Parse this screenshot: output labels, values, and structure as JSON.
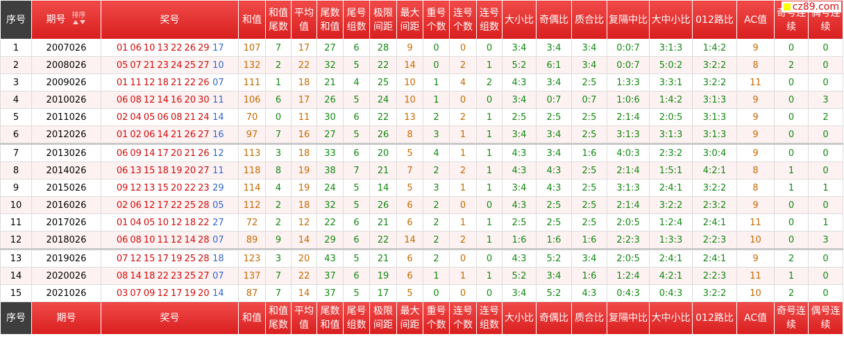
{
  "watermark": "cz89.com",
  "sort_label": "排序",
  "header": [
    "序号",
    "期号",
    "奖号",
    "和值",
    "和值尾数",
    "平均值",
    "尾数和值",
    "尾号组数",
    "极限间距",
    "最大间距",
    "重号个数",
    "连号个数",
    "连号组数",
    "大小比",
    "奇偶比",
    "质合比",
    "复隔中比",
    "大中小比",
    "012路比",
    "AC值",
    "奇号连续",
    "偶号连续"
  ],
  "footer": [
    "序号",
    "期号",
    "奖号",
    "和值",
    "和值尾数",
    "平均值",
    "尾数和值",
    "尾号组数",
    "极限间距",
    "最大间距",
    "重号个数",
    "连号个数",
    "连号组数",
    "大小比",
    "奇偶比",
    "质合比",
    "复隔中比",
    "大中小比",
    "012路比",
    "AC值",
    "奇号连续",
    "偶号连续"
  ],
  "rows": [
    {
      "no": 1,
      "issue": "2007026",
      "red": [
        "01",
        "06",
        "10",
        "13",
        "22",
        "26",
        "29"
      ],
      "blue": "17",
      "stats": [
        107,
        7,
        17,
        27,
        6,
        28,
        9,
        0,
        0,
        0,
        "3:4",
        "3:4",
        "3:4",
        "0:0:7",
        "3:1:3",
        "1:4:2",
        9,
        0,
        0
      ]
    },
    {
      "no": 2,
      "issue": "2008026",
      "red": [
        "05",
        "07",
        "21",
        "23",
        "24",
        "25",
        "27"
      ],
      "blue": "10",
      "stats": [
        132,
        2,
        22,
        32,
        5,
        22,
        14,
        0,
        2,
        1,
        "5:2",
        "6:1",
        "3:4",
        "0:0:7",
        "5:0:2",
        "3:2:2",
        8,
        2,
        0
      ]
    },
    {
      "no": 3,
      "issue": "2009026",
      "red": [
        "01",
        "11",
        "12",
        "18",
        "21",
        "22",
        "26"
      ],
      "blue": "07",
      "stats": [
        111,
        1,
        18,
        21,
        4,
        25,
        10,
        1,
        4,
        2,
        "4:3",
        "3:4",
        "2:5",
        "1:3:3",
        "3:3:1",
        "3:2:2",
        11,
        0,
        0
      ]
    },
    {
      "no": 4,
      "issue": "2010026",
      "red": [
        "06",
        "08",
        "12",
        "14",
        "16",
        "20",
        "30"
      ],
      "blue": "11",
      "stats": [
        106,
        6,
        17,
        26,
        5,
        24,
        10,
        1,
        0,
        0,
        "3:4",
        "0:7",
        "0:7",
        "1:0:6",
        "1:4:2",
        "3:1:3",
        9,
        0,
        3
      ]
    },
    {
      "no": 5,
      "issue": "2011026",
      "red": [
        "02",
        "04",
        "05",
        "06",
        "08",
        "21",
        "24"
      ],
      "blue": "14",
      "stats": [
        70,
        0,
        11,
        30,
        6,
        22,
        13,
        2,
        2,
        1,
        "2:5",
        "2:5",
        "2:5",
        "2:1:4",
        "2:0:5",
        "3:1:3",
        9,
        0,
        2
      ]
    },
    {
      "no": 6,
      "issue": "2012026",
      "red": [
        "01",
        "02",
        "06",
        "14",
        "21",
        "26",
        "27"
      ],
      "blue": "16",
      "stats": [
        97,
        7,
        16,
        27,
        5,
        26,
        8,
        3,
        1,
        1,
        "3:4",
        "3:4",
        "2:5",
        "3:1:3",
        "3:1:3",
        "3:1:3",
        9,
        0,
        0
      ]
    },
    {
      "no": 7,
      "issue": "2013026",
      "red": [
        "06",
        "09",
        "14",
        "17",
        "20",
        "21",
        "26"
      ],
      "blue": "12",
      "stats": [
        113,
        3,
        18,
        33,
        6,
        20,
        5,
        4,
        1,
        1,
        "4:3",
        "3:4",
        "1:6",
        "4:0:3",
        "2:3:2",
        "3:0:4",
        9,
        0,
        0
      ]
    },
    {
      "no": 8,
      "issue": "2014026",
      "red": [
        "06",
        "13",
        "15",
        "18",
        "19",
        "20",
        "27"
      ],
      "blue": "11",
      "stats": [
        118,
        8,
        19,
        38,
        7,
        21,
        7,
        2,
        2,
        1,
        "4:3",
        "4:3",
        "2:5",
        "2:1:4",
        "1:5:1",
        "4:2:1",
        8,
        1,
        0
      ]
    },
    {
      "no": 9,
      "issue": "2015026",
      "red": [
        "09",
        "12",
        "13",
        "15",
        "20",
        "22",
        "23"
      ],
      "blue": "29",
      "stats": [
        114,
        4,
        19,
        24,
        5,
        14,
        5,
        3,
        1,
        1,
        "3:4",
        "4:3",
        "2:5",
        "3:1:3",
        "2:4:1",
        "3:2:2",
        8,
        1,
        1
      ]
    },
    {
      "no": 10,
      "issue": "2016026",
      "red": [
        "02",
        "06",
        "12",
        "17",
        "22",
        "25",
        "28"
      ],
      "blue": "05",
      "stats": [
        112,
        2,
        18,
        32,
        5,
        26,
        6,
        2,
        0,
        0,
        "4:3",
        "2:5",
        "2:5",
        "2:1:4",
        "3:2:2",
        "2:3:2",
        9,
        0,
        0
      ]
    },
    {
      "no": 11,
      "issue": "2017026",
      "red": [
        "01",
        "04",
        "05",
        "10",
        "12",
        "18",
        "22"
      ],
      "blue": "27",
      "stats": [
        72,
        2,
        12,
        22,
        6,
        21,
        6,
        2,
        1,
        1,
        "2:5",
        "2:5",
        "2:5",
        "2:0:5",
        "1:2:4",
        "2:4:1",
        11,
        0,
        1
      ]
    },
    {
      "no": 12,
      "issue": "2018026",
      "red": [
        "06",
        "08",
        "10",
        "11",
        "12",
        "14",
        "28"
      ],
      "blue": "07",
      "stats": [
        89,
        9,
        14,
        29,
        6,
        22,
        14,
        2,
        2,
        1,
        "1:6",
        "1:6",
        "1:6",
        "2:2:3",
        "1:3:3",
        "2:2:3",
        10,
        0,
        3
      ]
    },
    {
      "no": 13,
      "issue": "2019026",
      "red": [
        "07",
        "12",
        "15",
        "17",
        "19",
        "25",
        "28"
      ],
      "blue": "18",
      "stats": [
        123,
        3,
        20,
        43,
        5,
        21,
        6,
        2,
        0,
        0,
        "4:3",
        "5:2",
        "3:4",
        "2:0:5",
        "2:4:1",
        "2:4:1",
        9,
        2,
        0
      ]
    },
    {
      "no": 14,
      "issue": "2020026",
      "red": [
        "08",
        "14",
        "18",
        "22",
        "23",
        "25",
        "27"
      ],
      "blue": "07",
      "stats": [
        137,
        7,
        22,
        37,
        6,
        19,
        6,
        1,
        1,
        1,
        "5:2",
        "3:4",
        "1:6",
        "1:2:4",
        "4:2:1",
        "2:2:3",
        11,
        1,
        0
      ]
    },
    {
      "no": 15,
      "issue": "2021026",
      "red": [
        "03",
        "07",
        "09",
        "12",
        "17",
        "19",
        "20"
      ],
      "blue": "14",
      "stats": [
        87,
        7,
        14,
        37,
        5,
        17,
        5,
        0,
        0,
        0,
        "3:4",
        "5:2",
        "4:3",
        "0:4:3",
        "0:4:3",
        "3:2:2",
        10,
        2,
        0
      ]
    }
  ]
}
